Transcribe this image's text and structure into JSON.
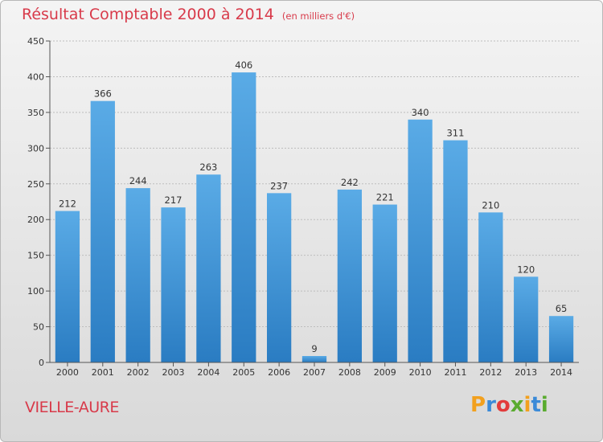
{
  "title": "Résultat Comptable 2000 à 2014",
  "subtitle": "(en milliers d'€)",
  "commune": "VIELLE-AURE",
  "logo": {
    "letters": [
      "P",
      "r",
      "o",
      "x",
      "i",
      "t",
      "i"
    ],
    "colors": [
      "#f2a01e",
      "#3a8ad8",
      "#e23c3c",
      "#5aab2f",
      "#f2a01e",
      "#3a8ad8",
      "#5aab2f"
    ]
  },
  "colors": {
    "bar_top": "#5aabe6",
    "bar_bottom": "#2a7cc2",
    "axis": "#555555",
    "grid": "#bdbdbd",
    "text": "#d83a4a"
  },
  "chart_data": {
    "type": "bar",
    "categories": [
      "2000",
      "2001",
      "2002",
      "2003",
      "2004",
      "2005",
      "2006",
      "2007",
      "2008",
      "2009",
      "2010",
      "2011",
      "2012",
      "2013",
      "2014"
    ],
    "values": [
      212,
      366,
      244,
      217,
      263,
      406,
      237,
      9,
      242,
      221,
      340,
      311,
      210,
      120,
      65
    ],
    "ylim": [
      0,
      450
    ],
    "yticks": [
      0,
      50,
      100,
      150,
      200,
      250,
      300,
      350,
      400,
      450
    ],
    "grid": true
  }
}
